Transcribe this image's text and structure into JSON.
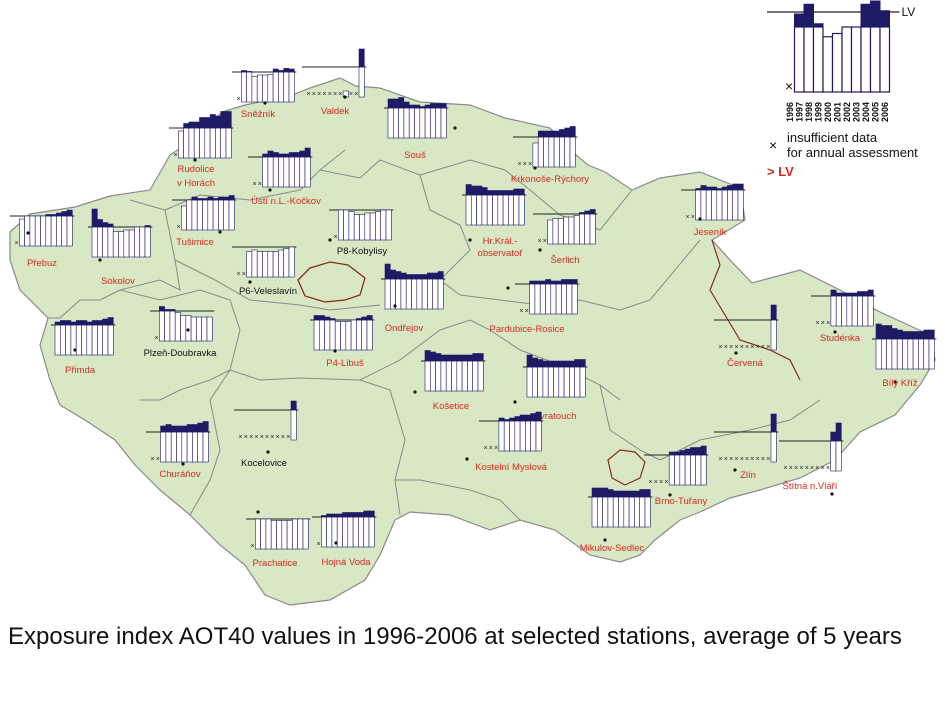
{
  "caption": "Exposure index AOT40 values in 1996-2006 at selected stations, average of 5 years",
  "colors": {
    "land": "#d8e8c4",
    "border": "#8a8a8a",
    "praha_brno": "#8b2a1a",
    "moravia_border": "#8b2a1a",
    "bar_fill": "#1e1a66",
    "bar_stroke": "#1e1a66",
    "red_text": "#d52b1e"
  },
  "legend": {
    "lv_label": "LV",
    "years": [
      "1996",
      "1997",
      "1998",
      "1999",
      "2000",
      "2001",
      "2002",
      "2003",
      "2004",
      "2005",
      "2006"
    ],
    "cross_note_line1": "insufficient data",
    "cross_note_line2": "for annual assessment",
    "exceed_label": "> LV",
    "cross_symbol": "×"
  },
  "chart_data": {
    "type": "bar",
    "categories": [
      "1996",
      "1997",
      "1998",
      "1999",
      "2000",
      "2001",
      "2002",
      "2003",
      "2004",
      "2005",
      "2006"
    ],
    "note": "bars relative to limit value LV = 1.0; null = insufficient data",
    "stations": [
      {
        "name": "Sněžník",
        "red": true,
        "values": [
          null,
          1.05,
          1.02,
          0.85,
          0.9,
          0.9,
          0.92,
          1.1,
          1.05,
          1.12,
          1.1
        ]
      },
      {
        "name": "Valdek",
        "red": true,
        "values": [
          null,
          null,
          null,
          null,
          null,
          null,
          null,
          0.2,
          null,
          null,
          1.6
        ]
      },
      {
        "name": "Rudolice\nv Horách",
        "red": true,
        "values": [
          null,
          0.9,
          1.15,
          1.2,
          1.2,
          1.35,
          1.35,
          1.45,
          1.4,
          1.55,
          1.55
        ]
      },
      {
        "name": "Souš",
        "red": true,
        "values": [
          1.3,
          1.3,
          1.35,
          1.2,
          1.1,
          1.1,
          1.05,
          1.1,
          1.15,
          1.15,
          1.15
        ]
      },
      {
        "name": "Krkonoše-Rýchory",
        "red": true,
        "values": [
          null,
          null,
          null,
          0.8,
          1.2,
          1.2,
          1.2,
          1.2,
          1.25,
          1.3,
          1.35
        ]
      },
      {
        "name": "Ústí n.L.-Kočkov",
        "red": true,
        "values": [
          null,
          null,
          1.1,
          1.2,
          1.15,
          1.1,
          1.1,
          1.15,
          1.15,
          1.2,
          1.3
        ]
      },
      {
        "name": "Tušimice",
        "red": true,
        "values": [
          null,
          0.8,
          1.0,
          1.1,
          1.05,
          1.05,
          1.1,
          1.05,
          1.1,
          1.1,
          1.15
        ]
      },
      {
        "name": "Přebuz",
        "red": true,
        "values": [
          null,
          0.9,
          1.0,
          1.0,
          1.0,
          1.0,
          1.05,
          1.05,
          1.1,
          1.15,
          1.2
        ]
      },
      {
        "name": "Sokolov",
        "red": true,
        "values": [
          1.6,
          1.25,
          1.15,
          1.1,
          0.85,
          0.85,
          0.9,
          0.9,
          1.0,
          1.0,
          1.05
        ]
      },
      {
        "name": "P8-Kobylisy",
        "red": false,
        "values": [
          null,
          1.0,
          1.0,
          0.95,
          0.85,
          0.85,
          0.9,
          0.9,
          0.95,
          1.0,
          1.0
        ]
      },
      {
        "name": "P6-Veleslavín",
        "red": false,
        "values": [
          null,
          null,
          0.85,
          0.9,
          0.85,
          0.85,
          0.85,
          0.85,
          0.9,
          0.95,
          1.0
        ]
      },
      {
        "name": "Hr.Král.-\nobservatoř",
        "red": true,
        "values": [
          1.35,
          1.3,
          1.3,
          1.25,
          1.15,
          1.15,
          1.15,
          1.15,
          1.15,
          1.2,
          1.2
        ]
      },
      {
        "name": "Šerlich",
        "red": true,
        "values": [
          null,
          null,
          0.8,
          0.85,
          0.85,
          0.9,
          0.9,
          0.95,
          1.05,
          1.1,
          1.15
        ]
      },
      {
        "name": "Jeseník",
        "red": true,
        "values": [
          null,
          null,
          1.05,
          1.15,
          1.1,
          1.1,
          1.05,
          1.1,
          1.15,
          1.2,
          1.2
        ]
      },
      {
        "name": "Ondřejov",
        "red": true,
        "values": [
          1.5,
          1.3,
          1.25,
          1.2,
          1.15,
          1.15,
          1.15,
          1.15,
          1.2,
          1.2,
          1.25
        ]
      },
      {
        "name": "Pardubice-Rosice",
        "red": true,
        "values": [
          null,
          null,
          1.1,
          1.1,
          1.1,
          1.15,
          1.1,
          1.1,
          1.15,
          1.15,
          1.15
        ]
      },
      {
        "name": "Přimda",
        "red": true,
        "values": [
          1.1,
          1.15,
          1.15,
          1.1,
          1.15,
          1.15,
          1.1,
          1.15,
          1.15,
          1.2,
          1.25
        ]
      },
      {
        "name": "Plzeň-Doubravka",
        "red": false,
        "values": [
          null,
          1.15,
          1.05,
          1.05,
          0.95,
          0.85,
          0.85,
          0.8,
          0.8,
          0.8,
          0.8
        ]
      },
      {
        "name": "P4-Libuš",
        "red": true,
        "values": [
          1.15,
          1.15,
          1.1,
          1.05,
          0.95,
          0.95,
          0.95,
          1.0,
          1.05,
          1.1,
          1.15
        ]
      },
      {
        "name": "Červená",
        "red": true,
        "values": [
          null,
          null,
          null,
          null,
          null,
          null,
          null,
          null,
          null,
          null,
          1.5
        ]
      },
      {
        "name": "Studénka",
        "red": true,
        "values": [
          null,
          null,
          null,
          1.2,
          1.1,
          1.1,
          1.1,
          1.1,
          1.15,
          1.15,
          1.2
        ]
      },
      {
        "name": "Bílý Kříž",
        "red": true,
        "values": [
          1.5,
          1.45,
          1.45,
          1.35,
          1.3,
          1.25,
          1.25,
          1.25,
          1.25,
          1.3,
          1.3
        ]
      },
      {
        "name": "Košetice",
        "red": true,
        "values": [
          1.35,
          1.3,
          1.25,
          1.2,
          1.2,
          1.2,
          1.2,
          1.2,
          1.2,
          1.25,
          1.25
        ]
      },
      {
        "name": "Svratouch",
        "red": true,
        "values": [
          1.4,
          1.3,
          1.25,
          1.2,
          1.2,
          1.2,
          1.2,
          1.2,
          1.2,
          1.25,
          1.25
        ]
      },
      {
        "name": "Kocelovice",
        "red": false,
        "values": [
          null,
          null,
          null,
          null,
          null,
          null,
          null,
          null,
          null,
          null,
          1.3
        ]
      },
      {
        "name": "Kostelní Myslová",
        "red": true,
        "values": [
          null,
          null,
          null,
          1.1,
          1.05,
          1.1,
          1.15,
          1.2,
          1.2,
          1.25,
          1.3
        ]
      },
      {
        "name": "Churáňov",
        "red": true,
        "values": [
          null,
          null,
          1.2,
          1.25,
          1.2,
          1.2,
          1.2,
          1.25,
          1.25,
          1.3,
          1.35
        ]
      },
      {
        "name": "Brno-Tuřany",
        "red": true,
        "values": [
          null,
          null,
          null,
          null,
          1.1,
          1.1,
          1.15,
          1.2,
          1.25,
          1.25,
          1.3
        ]
      },
      {
        "name": "Zlín",
        "red": true,
        "values": [
          null,
          null,
          null,
          null,
          null,
          null,
          null,
          null,
          null,
          null,
          1.6
        ]
      },
      {
        "name": "Štítná n.Vláří",
        "red": true,
        "values": [
          null,
          null,
          null,
          null,
          null,
          null,
          null,
          null,
          null,
          1.3,
          1.6
        ]
      },
      {
        "name": "Prachatice",
        "red": true,
        "values": [
          null,
          1.0,
          1.0,
          1.0,
          0.95,
          0.95,
          0.95,
          0.95,
          1.0,
          1.0,
          1.0
        ]
      },
      {
        "name": "Hojná Voda",
        "red": true,
        "values": [
          null,
          1.05,
          1.1,
          1.1,
          1.1,
          1.15,
          1.15,
          1.15,
          1.15,
          1.2,
          1.2
        ]
      },
      {
        "name": "Mikulov-Sedlec",
        "red": true,
        "values": [
          1.3,
          1.3,
          1.3,
          1.25,
          1.2,
          1.2,
          1.2,
          1.2,
          1.2,
          1.25,
          1.25
        ]
      }
    ]
  }
}
